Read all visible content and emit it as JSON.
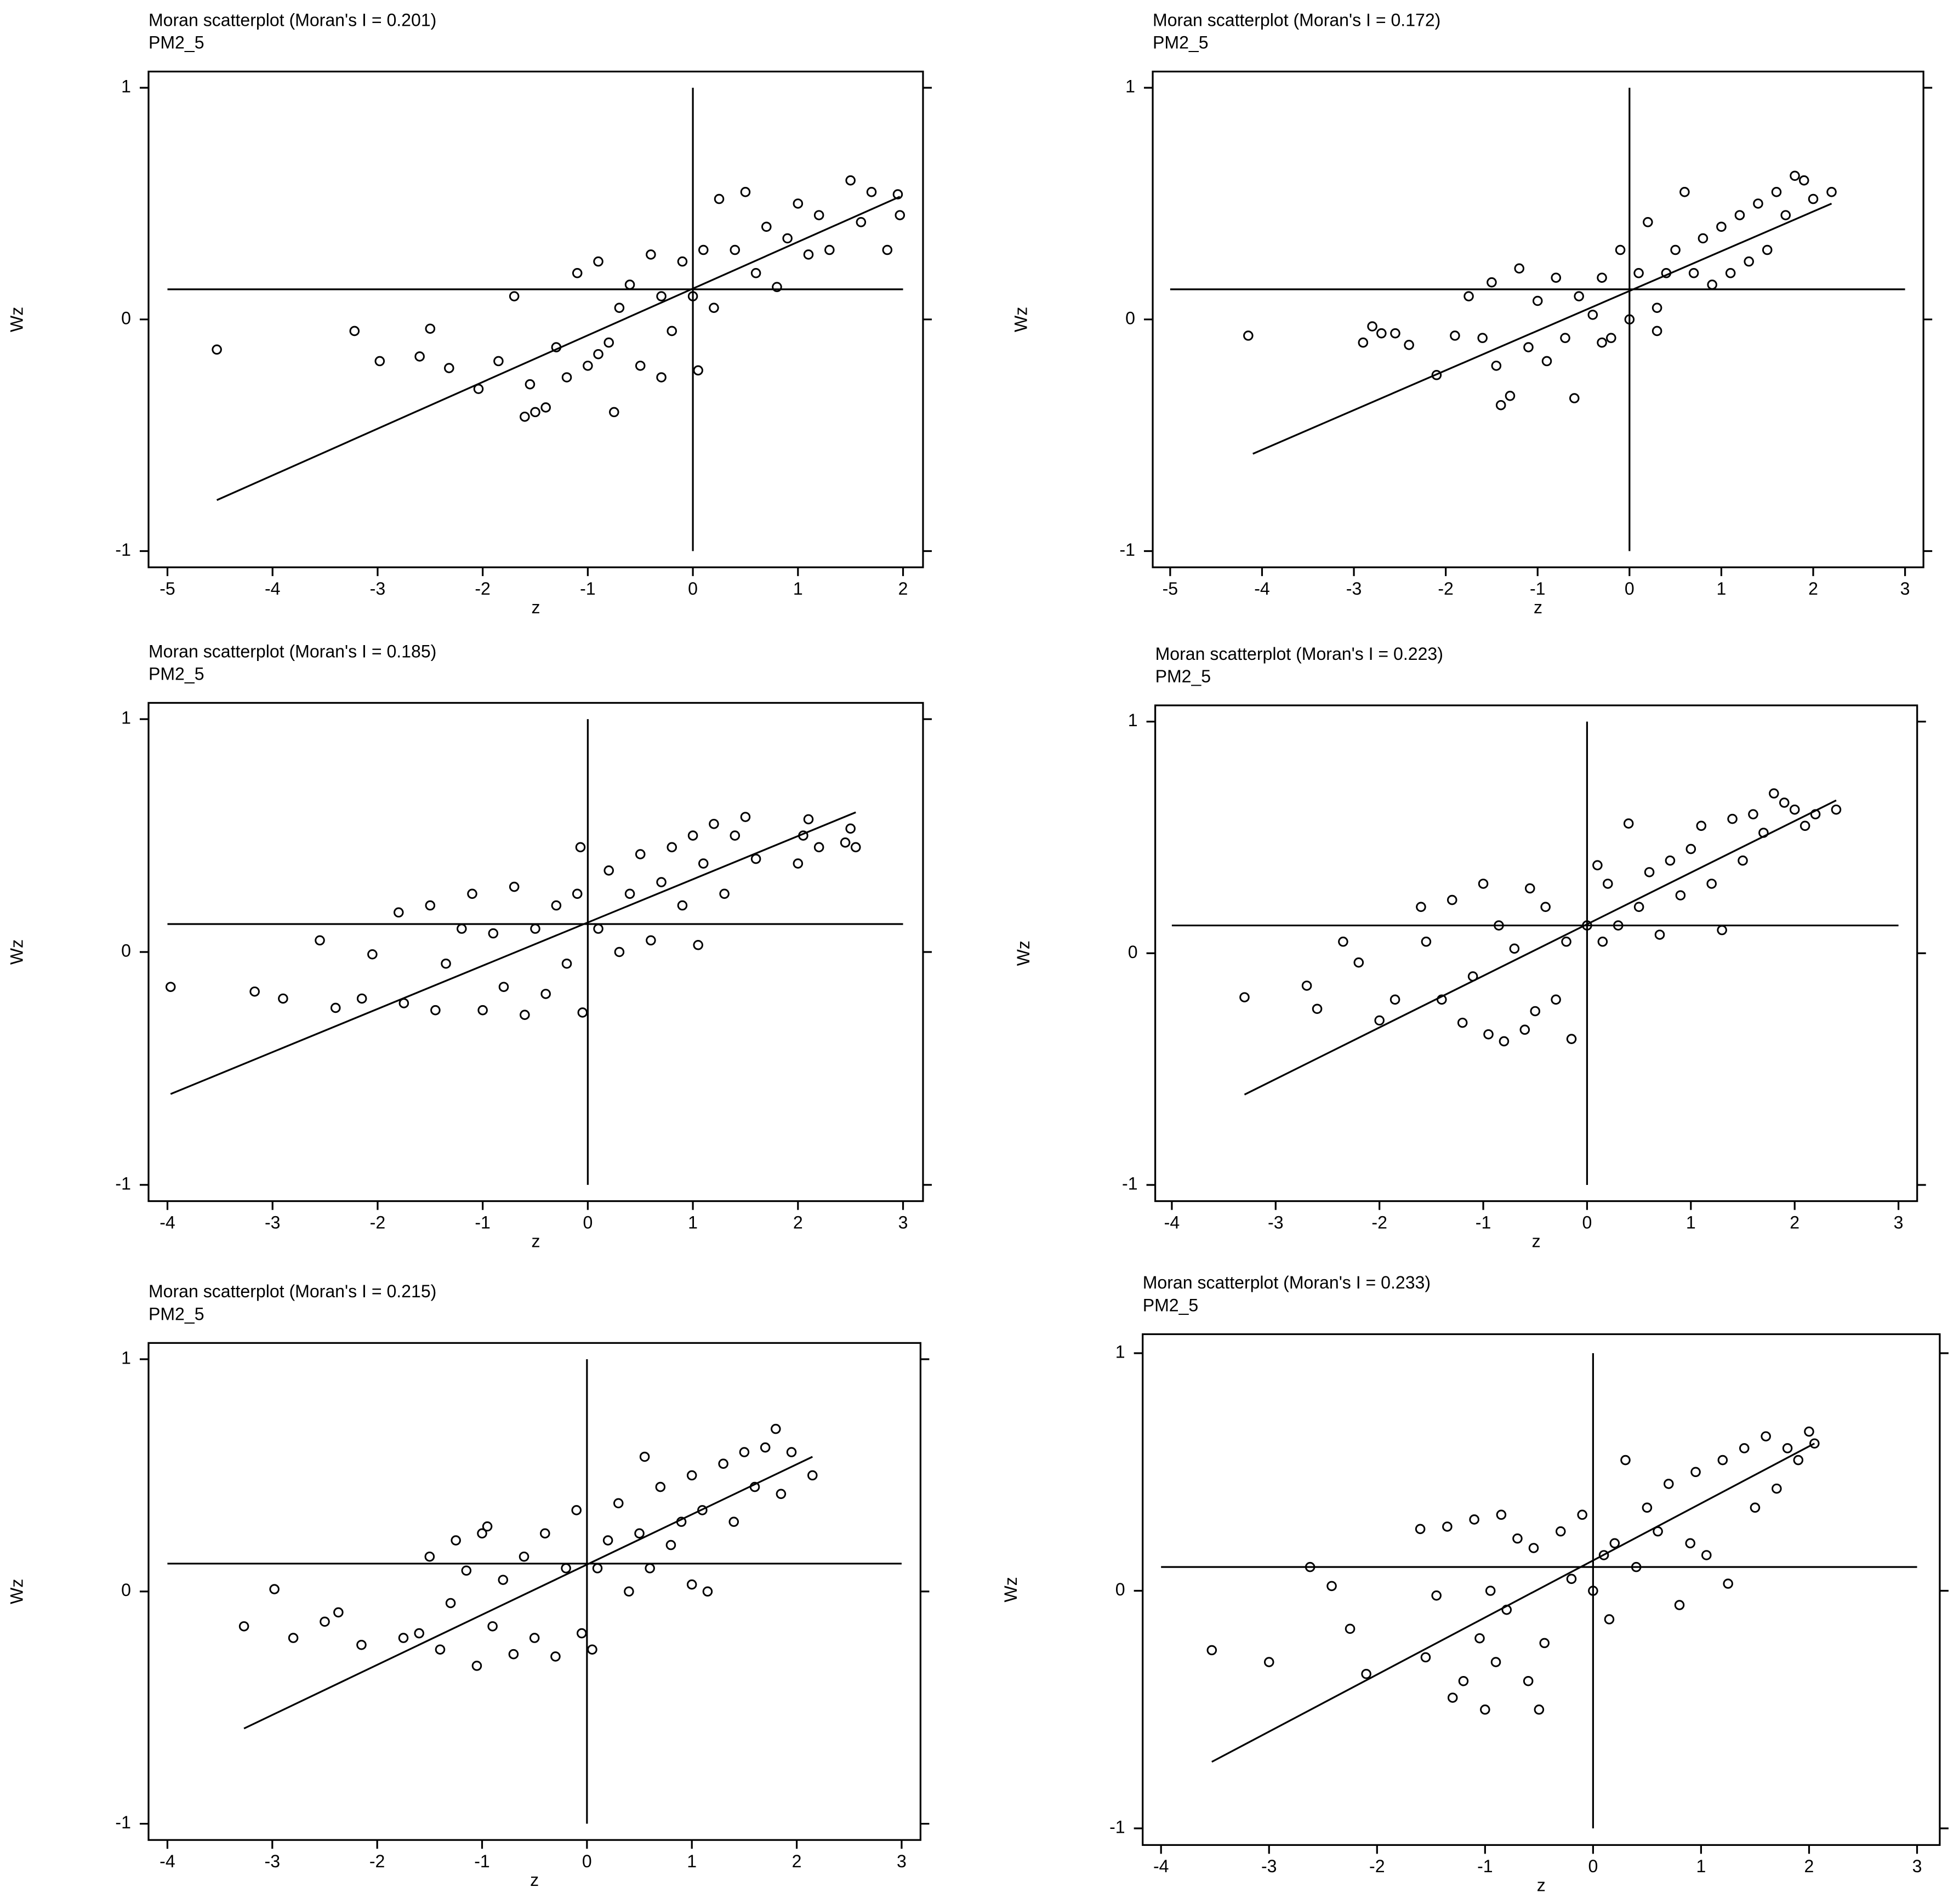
{
  "chart_data": [
    {
      "type": "scatter",
      "title": "Moran scatterplot (Moran's I = 0.201)",
      "subtitle": "PM2_5",
      "x_label": "z",
      "y_label": "Wz",
      "xlim": [
        -5.18,
        2.19
      ],
      "ylim": [
        -1.07,
        1.07
      ],
      "xticks": [
        -5,
        -4,
        -3,
        -2,
        -1,
        0,
        1,
        2
      ],
      "yticks": [
        -1,
        0,
        1
      ],
      "h_ref": 0.13,
      "v_ref": 0,
      "fit_line": {
        "x": [
          -4.53,
          1.97
        ],
        "values": [
          -0.78,
          0.53
        ]
      },
      "x": [
        -4.53,
        -3.22,
        -2.98,
        -2.6,
        -2.5,
        -2.32,
        -2.04,
        -1.85,
        -1.7,
        -1.55,
        -1.5,
        -1.4,
        -1.6,
        -1.3,
        -1.1,
        -1.0,
        -0.9,
        -0.8,
        -0.7,
        -0.75,
        -0.6,
        -0.5,
        -0.4,
        -0.3,
        -0.2,
        -0.1,
        0,
        0.05,
        0.2,
        0.25,
        0.4,
        0.5,
        0.6,
        0.7,
        0.8,
        0.9,
        1.0,
        1.1,
        1.2,
        1.3,
        1.5,
        1.6,
        1.7,
        1.85,
        1.97,
        1.95,
        -1.2,
        -0.9,
        0.1,
        -0.3
      ],
      "values": [
        -0.13,
        -0.05,
        -0.18,
        -0.16,
        -0.04,
        -0.21,
        -0.3,
        -0.18,
        0.1,
        -0.28,
        -0.4,
        -0.38,
        -0.42,
        -0.12,
        0.2,
        -0.2,
        0.25,
        -0.1,
        0.05,
        -0.4,
        0.15,
        -0.2,
        0.28,
        0.1,
        -0.05,
        0.25,
        0.1,
        -0.22,
        0.05,
        0.52,
        0.3,
        0.55,
        0.2,
        0.4,
        0.14,
        0.35,
        0.5,
        0.28,
        0.45,
        0.3,
        0.6,
        0.42,
        0.55,
        0.3,
        0.45,
        0.54,
        -0.25,
        -0.15,
        0.3,
        -0.25
      ]
    },
    {
      "type": "scatter",
      "title": "Moran scatterplot (Moran's I = 0.172)",
      "subtitle": "PM2_5",
      "x_label": "z",
      "y_label": "Wz",
      "xlim": [
        -5.19,
        3.2
      ],
      "ylim": [
        -1.07,
        1.07
      ],
      "xticks": [
        -5,
        -4,
        -3,
        -2,
        -1,
        0,
        1,
        2,
        3
      ],
      "yticks": [
        -1,
        0,
        1
      ],
      "h_ref": 0.13,
      "v_ref": 0,
      "fit_line": {
        "x": [
          -4.1,
          2.2
        ],
        "values": [
          -0.58,
          0.5
        ]
      },
      "x": [
        -4.15,
        -2.9,
        -2.8,
        -2.7,
        -2.55,
        -2.4,
        -2.1,
        -1.9,
        -1.75,
        -1.6,
        -1.5,
        -1.45,
        -1.4,
        -1.3,
        -1.2,
        -1.1,
        -1.0,
        -0.9,
        -0.8,
        -0.7,
        -0.6,
        -0.55,
        -0.4,
        -0.3,
        -0.2,
        -0.1,
        0,
        0.1,
        0.2,
        0.3,
        0.4,
        0.5,
        0.6,
        0.7,
        0.8,
        0.9,
        1.0,
        1.1,
        1.2,
        1.3,
        1.4,
        1.5,
        1.6,
        1.7,
        1.8,
        1.9,
        2.0,
        2.2,
        -0.3,
        0.3
      ],
      "values": [
        -0.07,
        -0.1,
        -0.03,
        -0.06,
        -0.06,
        -0.11,
        -0.24,
        -0.07,
        0.1,
        -0.08,
        0.16,
        -0.2,
        -0.37,
        -0.33,
        0.22,
        -0.12,
        0.08,
        -0.18,
        0.18,
        -0.08,
        -0.34,
        0.1,
        0.02,
        0.18,
        -0.08,
        0.3,
        0.0,
        0.2,
        0.42,
        0.05,
        0.2,
        0.3,
        0.55,
        0.2,
        0.35,
        0.15,
        0.4,
        0.2,
        0.45,
        0.25,
        0.5,
        0.3,
        0.55,
        0.45,
        0.62,
        0.6,
        0.52,
        0.55,
        -0.1,
        -0.05
      ]
    },
    {
      "type": "scatter",
      "title": "Moran scatterplot (Moran's I = 0.185)",
      "subtitle": "PM2_5",
      "x_label": "z",
      "y_label": "Wz",
      "xlim": [
        -4.18,
        3.19
      ],
      "ylim": [
        -1.07,
        1.07
      ],
      "xticks": [
        -4,
        -3,
        -2,
        -1,
        0,
        1,
        2,
        3
      ],
      "yticks": [
        -1,
        0,
        1
      ],
      "h_ref": 0.12,
      "v_ref": 0,
      "fit_line": {
        "x": [
          -3.97,
          2.55
        ],
        "values": [
          -0.61,
          0.6
        ]
      },
      "x": [
        -3.97,
        -3.17,
        -2.9,
        -2.55,
        -2.4,
        -2.15,
        -2.05,
        -1.75,
        -1.8,
        -1.5,
        -1.45,
        -1.35,
        -1.2,
        -1.1,
        -1.0,
        -0.9,
        -0.8,
        -0.7,
        -0.6,
        -0.5,
        -0.4,
        -0.3,
        -0.2,
        -0.1,
        -0.07,
        -0.05,
        0.1,
        0.2,
        0.3,
        0.4,
        0.5,
        0.6,
        0.7,
        0.8,
        0.9,
        1.0,
        1.05,
        1.1,
        1.2,
        1.3,
        1.4,
        1.5,
        1.6,
        2.0,
        2.05,
        2.1,
        2.2,
        2.5,
        2.55,
        2.45
      ],
      "values": [
        -0.15,
        -0.17,
        -0.2,
        0.05,
        -0.24,
        -0.2,
        -0.01,
        -0.22,
        0.17,
        0.2,
        -0.25,
        -0.05,
        0.1,
        0.25,
        -0.25,
        0.08,
        -0.15,
        0.28,
        -0.27,
        0.1,
        -0.18,
        0.2,
        -0.05,
        0.25,
        0.45,
        -0.26,
        0.1,
        0.35,
        0.0,
        0.25,
        0.42,
        0.05,
        0.3,
        0.45,
        0.2,
        0.5,
        0.03,
        0.38,
        0.55,
        0.25,
        0.5,
        0.58,
        0.4,
        0.38,
        0.5,
        0.57,
        0.45,
        0.53,
        0.45,
        0.47
      ]
    },
    {
      "type": "scatter",
      "title": "Moran scatterplot (Moran's I = 0.223)",
      "subtitle": "PM2_5",
      "x_label": "z",
      "y_label": "Wz",
      "xlim": [
        -4.16,
        3.18
      ],
      "ylim": [
        -1.07,
        1.07
      ],
      "xticks": [
        -4,
        -3,
        -2,
        -1,
        0,
        1,
        2,
        3
      ],
      "yticks": [
        -1,
        0,
        1
      ],
      "h_ref": 0.12,
      "v_ref": 0,
      "fit_line": {
        "x": [
          -3.3,
          2.4
        ],
        "values": [
          -0.61,
          0.66
        ]
      },
      "x": [
        -3.3,
        -2.7,
        -2.6,
        -2.35,
        -2.2,
        -2.0,
        -1.85,
        -1.6,
        -1.55,
        -1.4,
        -1.3,
        -1.2,
        -1.1,
        -1.0,
        -0.95,
        -0.85,
        -0.8,
        -0.7,
        -0.6,
        -0.55,
        -0.5,
        -0.4,
        -0.3,
        -0.2,
        -0.15,
        0,
        0.1,
        0.15,
        0.2,
        0.3,
        0.4,
        0.5,
        0.6,
        0.7,
        0.8,
        0.9,
        1.0,
        1.1,
        1.2,
        1.3,
        1.4,
        1.5,
        1.6,
        1.7,
        1.8,
        1.9,
        2.0,
        2.1,
        2.2,
        2.4
      ],
      "values": [
        -0.19,
        -0.14,
        -0.24,
        0.05,
        -0.04,
        -0.29,
        -0.2,
        0.2,
        0.05,
        -0.2,
        0.23,
        -0.3,
        -0.1,
        0.3,
        -0.35,
        0.12,
        -0.38,
        0.02,
        -0.33,
        0.28,
        -0.25,
        0.2,
        -0.2,
        0.05,
        -0.37,
        0.12,
        0.38,
        0.05,
        0.3,
        0.12,
        0.56,
        0.2,
        0.35,
        0.08,
        0.4,
        0.25,
        0.45,
        0.55,
        0.3,
        0.1,
        0.58,
        0.4,
        0.6,
        0.52,
        0.69,
        0.65,
        0.62,
        0.55,
        0.6,
        0.62
      ]
    },
    {
      "type": "scatter",
      "title": "Moran scatterplot (Moran's I = 0.215)",
      "subtitle": "PM2_5",
      "x_label": "z",
      "y_label": "Wz",
      "xlim": [
        -4.18,
        3.18
      ],
      "ylim": [
        -1.07,
        1.07
      ],
      "xticks": [
        -4,
        -3,
        -2,
        -1,
        0,
        1,
        2,
        3
      ],
      "yticks": [
        -1,
        0,
        1
      ],
      "h_ref": 0.12,
      "v_ref": 0,
      "fit_line": {
        "x": [
          -3.27,
          2.15
        ],
        "values": [
          -0.59,
          0.58
        ]
      },
      "x": [
        -3.27,
        -2.98,
        -2.8,
        -2.5,
        -2.37,
        -2.15,
        -1.75,
        -1.6,
        -1.5,
        -1.4,
        -1.3,
        -1.25,
        -1.15,
        -1.05,
        -1.0,
        -0.95,
        -0.9,
        -0.8,
        -0.7,
        -0.6,
        -0.5,
        -0.4,
        -0.3,
        -0.2,
        -0.1,
        -0.05,
        0.05,
        0.1,
        0.2,
        0.3,
        0.4,
        0.5,
        0.55,
        0.6,
        0.7,
        0.8,
        0.9,
        1.0,
        1.0,
        1.1,
        1.15,
        1.3,
        1.4,
        1.5,
        1.6,
        1.7,
        1.8,
        1.85,
        1.95,
        2.15
      ],
      "values": [
        -0.15,
        0.01,
        -0.2,
        -0.13,
        -0.09,
        -0.23,
        -0.2,
        -0.18,
        0.15,
        -0.25,
        -0.05,
        0.22,
        0.09,
        -0.32,
        0.25,
        0.28,
        -0.15,
        0.05,
        -0.27,
        0.15,
        -0.2,
        0.25,
        -0.28,
        0.1,
        0.35,
        -0.18,
        -0.25,
        0.1,
        0.22,
        0.38,
        0.0,
        0.25,
        0.58,
        0.1,
        0.45,
        0.2,
        0.3,
        0.5,
        0.03,
        0.35,
        0.0,
        0.55,
        0.3,
        0.6,
        0.45,
        0.62,
        0.7,
        0.42,
        0.6,
        0.5
      ]
    },
    {
      "type": "scatter",
      "title": "Moran scatterplot (Moran's I = 0.233)",
      "subtitle": "PM2_5",
      "x_label": "z",
      "y_label": "Wz",
      "xlim": [
        -4.17,
        3.21
      ],
      "ylim": [
        -1.07,
        1.08
      ],
      "xticks": [
        -4,
        -3,
        -2,
        -1,
        0,
        1,
        2,
        3
      ],
      "yticks": [
        -1,
        0,
        1
      ],
      "h_ref": 0.1,
      "v_ref": 0,
      "fit_line": {
        "x": [
          -3.53,
          2.05
        ],
        "values": [
          -0.72,
          0.62
        ]
      },
      "x": [
        -3.53,
        -3.0,
        -2.62,
        -2.42,
        -2.25,
        -2.1,
        -1.6,
        -1.55,
        -1.45,
        -1.35,
        -1.3,
        -1.2,
        -1.1,
        -1.05,
        -1.0,
        -0.95,
        -0.9,
        -0.85,
        -0.8,
        -0.7,
        -0.6,
        -0.55,
        -0.5,
        -0.45,
        -0.3,
        -0.2,
        -0.1,
        0,
        0.1,
        0.15,
        0.2,
        0.3,
        0.4,
        0.5,
        0.6,
        0.7,
        0.8,
        0.9,
        0.95,
        1.05,
        1.2,
        1.25,
        1.4,
        1.5,
        1.6,
        1.7,
        1.8,
        1.9,
        2.0,
        2.05
      ],
      "values": [
        -0.25,
        -0.3,
        0.1,
        0.02,
        -0.16,
        -0.35,
        0.26,
        -0.28,
        -0.02,
        0.27,
        -0.45,
        -0.38,
        0.3,
        -0.2,
        -0.5,
        0.0,
        -0.3,
        0.32,
        -0.08,
        0.22,
        -0.38,
        0.18,
        -0.5,
        -0.22,
        0.25,
        0.05,
        0.32,
        0.0,
        0.15,
        -0.12,
        0.2,
        0.55,
        0.1,
        0.35,
        0.25,
        0.45,
        -0.06,
        0.2,
        0.5,
        0.15,
        0.55,
        0.03,
        0.6,
        0.35,
        0.65,
        0.43,
        0.6,
        0.55,
        0.67,
        0.62
      ]
    }
  ]
}
